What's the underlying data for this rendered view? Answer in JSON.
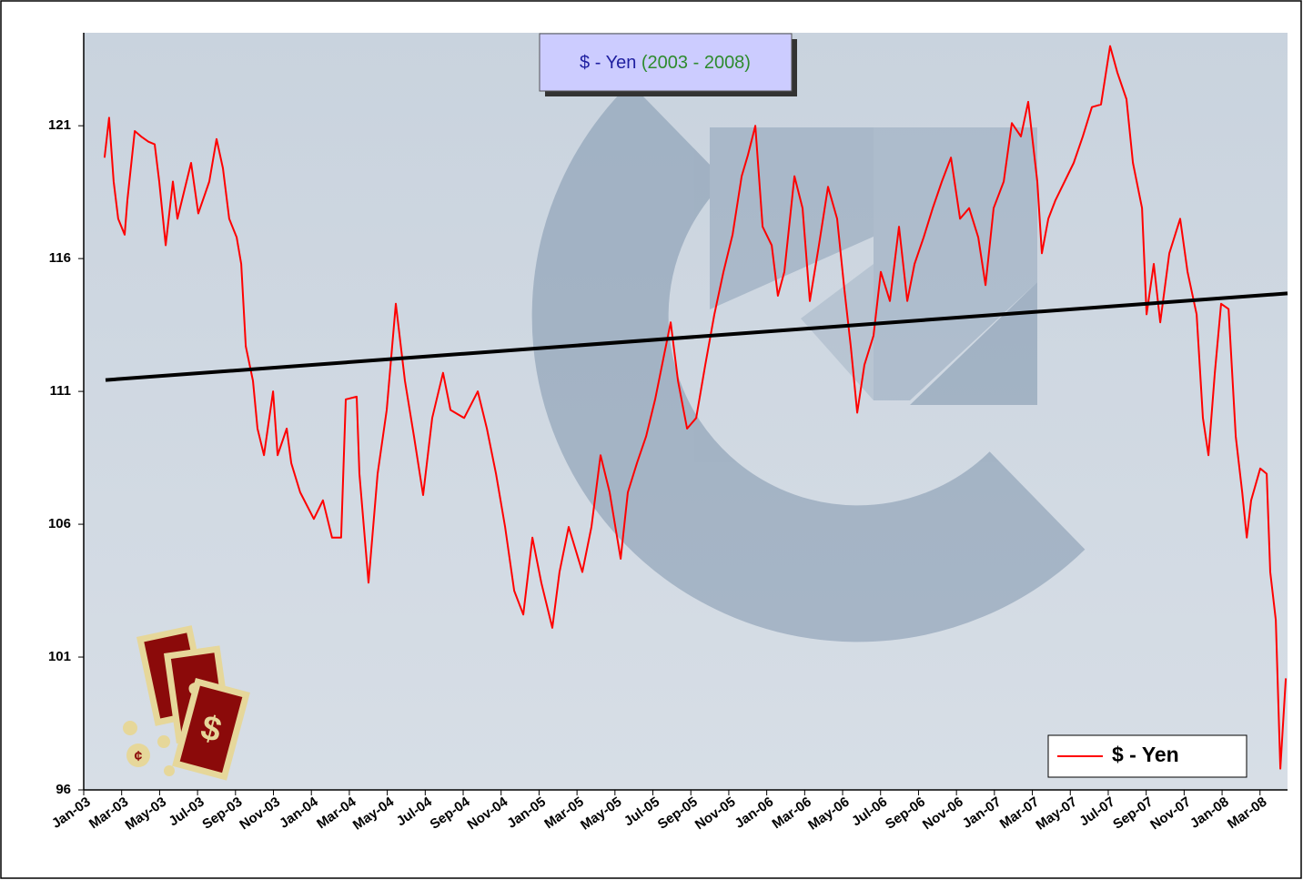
{
  "chart_data": {
    "type": "line",
    "title": "$ - Yen",
    "subtitle": "(2003 - 2008)",
    "xlim": [
      0,
      63.45
    ],
    "xticks": [
      {
        "value": 0,
        "label": "Jan-03"
      },
      {
        "value": 2,
        "label": "Mar-03"
      },
      {
        "value": 4,
        "label": "May-03"
      },
      {
        "value": 6,
        "label": "Jul-03"
      },
      {
        "value": 8,
        "label": "Sep-03"
      },
      {
        "value": 10,
        "label": "Nov-03"
      },
      {
        "value": 12,
        "label": "Jan-04"
      },
      {
        "value": 14,
        "label": "Mar-04"
      },
      {
        "value": 16,
        "label": "May-04"
      },
      {
        "value": 18,
        "label": "Jul-04"
      },
      {
        "value": 20,
        "label": "Sep-04"
      },
      {
        "value": 22,
        "label": "Nov-04"
      },
      {
        "value": 24,
        "label": "Jan-05"
      },
      {
        "value": 26,
        "label": "Mar-05"
      },
      {
        "value": 28,
        "label": "May-05"
      },
      {
        "value": 30,
        "label": "Jul-05"
      },
      {
        "value": 32,
        "label": "Sep-05"
      },
      {
        "value": 34,
        "label": "Nov-05"
      },
      {
        "value": 36,
        "label": "Jan-06"
      },
      {
        "value": 38,
        "label": "Mar-06"
      },
      {
        "value": 40,
        "label": "May-06"
      },
      {
        "value": 42,
        "label": "Jul-06"
      },
      {
        "value": 44,
        "label": "Sep-06"
      },
      {
        "value": 46,
        "label": "Nov-06"
      },
      {
        "value": 48,
        "label": "Jan-07"
      },
      {
        "value": 50,
        "label": "Mar-07"
      },
      {
        "value": 52,
        "label": "May-07"
      },
      {
        "value": 54,
        "label": "Jul-07"
      },
      {
        "value": 56,
        "label": "Sep-07"
      },
      {
        "value": 58,
        "label": "Nov-07"
      },
      {
        "value": 60,
        "label": "Jan-08"
      },
      {
        "value": 62,
        "label": "Mar-08"
      }
    ],
    "ylim": [
      96,
      124.5
    ],
    "yticks": [
      96,
      101,
      106,
      111,
      116,
      121
    ],
    "grid": false,
    "legend": "lower right",
    "series": [
      {
        "name": "$ - Yen",
        "color": "#ff0000",
        "x": [
          1.1,
          1.34,
          1.58,
          1.82,
          2.16,
          2.3,
          2.69,
          3.02,
          3.41,
          3.74,
          3.98,
          4.32,
          4.7,
          4.94,
          5.18,
          5.66,
          6.04,
          6.38,
          6.62,
          7.0,
          7.34,
          7.67,
          8.06,
          8.3,
          8.54,
          8.92,
          9.16,
          9.5,
          9.98,
          10.22,
          10.7,
          10.94,
          11.41,
          12.13,
          12.61,
          13.09,
          13.57,
          13.81,
          14.39,
          14.53,
          15.01,
          15.49,
          15.97,
          16.45,
          16.93,
          17.41,
          17.89,
          18.37,
          18.94,
          19.33,
          20.05,
          20.77,
          21.25,
          21.73,
          22.21,
          22.69,
          23.17,
          23.65,
          24.12,
          24.7,
          25.08,
          25.56,
          26.28,
          26.76,
          27.24,
          27.72,
          28.3,
          28.68,
          29.16,
          29.64,
          30.12,
          30.6,
          30.94,
          31.32,
          31.8,
          32.28,
          32.76,
          33.24,
          33.72,
          34.2,
          34.68,
          35.01,
          35.4,
          35.78,
          36.26,
          36.59,
          36.93,
          37.46,
          37.89,
          38.27,
          38.75,
          39.23,
          39.71,
          40.1,
          40.43,
          40.77,
          41.15,
          41.63,
          42.01,
          42.49,
          42.97,
          43.41,
          43.79,
          44.27,
          44.75,
          45.23,
          45.71,
          46.19,
          46.67,
          47.15,
          47.53,
          47.96,
          48.49,
          48.92,
          49.4,
          49.78,
          50.26,
          50.5,
          50.84,
          51.22,
          51.7,
          52.18,
          52.66,
          53.14,
          53.62,
          54.1,
          54.48,
          54.96,
          55.3,
          55.78,
          56.02,
          56.4,
          56.74,
          57.22,
          57.79,
          58.18,
          58.66,
          58.99,
          59.28,
          59.62,
          59.95,
          60.34,
          60.72,
          61.06,
          61.3,
          61.53,
          62.01,
          62.35,
          62.54,
          62.83,
          63.07,
          63.36
        ],
        "values": [
          119.8,
          121.3,
          118.9,
          117.5,
          116.9,
          118.2,
          120.8,
          120.6,
          120.4,
          120.3,
          118.9,
          116.5,
          118.9,
          117.5,
          118.2,
          119.6,
          117.7,
          118.4,
          118.9,
          120.5,
          119.4,
          117.5,
          116.8,
          115.8,
          112.7,
          111.4,
          109.6,
          108.6,
          111.0,
          108.6,
          109.6,
          108.3,
          107.2,
          106.2,
          106.9,
          105.5,
          105.5,
          110.7,
          110.8,
          107.9,
          103.8,
          107.9,
          110.3,
          114.3,
          111.4,
          109.3,
          107.1,
          110.0,
          111.7,
          110.3,
          110.0,
          111.0,
          109.6,
          107.9,
          105.9,
          103.5,
          102.6,
          105.5,
          103.8,
          102.1,
          104.2,
          105.9,
          104.2,
          105.9,
          108.6,
          107.2,
          104.7,
          107.2,
          108.3,
          109.3,
          110.7,
          112.4,
          113.6,
          111.4,
          109.6,
          110.0,
          112.0,
          113.9,
          115.5,
          116.9,
          119.1,
          119.9,
          121.0,
          117.2,
          116.5,
          114.6,
          115.5,
          119.1,
          117.9,
          114.4,
          116.5,
          118.7,
          117.5,
          114.8,
          112.7,
          110.2,
          112.0,
          113.1,
          115.5,
          114.4,
          117.2,
          114.4,
          115.8,
          116.8,
          117.9,
          118.9,
          119.8,
          117.5,
          117.9,
          116.8,
          115.0,
          117.9,
          118.9,
          121.1,
          120.6,
          121.9,
          118.9,
          116.2,
          117.5,
          118.2,
          118.9,
          119.6,
          120.6,
          121.7,
          121.8,
          124.0,
          123.0,
          122.0,
          119.6,
          117.9,
          113.9,
          115.8,
          113.6,
          116.2,
          117.5,
          115.5,
          113.9,
          110.0,
          108.6,
          111.7,
          114.3,
          114.1,
          109.3,
          107.2,
          105.5,
          106.9,
          108.1,
          107.9,
          104.2,
          102.4,
          96.8,
          100.2
        ]
      },
      {
        "color": "#000000",
        "x": [
          1.15,
          63.45
        ],
        "values": [
          111.43,
          114.69
        ]
      }
    ]
  }
}
